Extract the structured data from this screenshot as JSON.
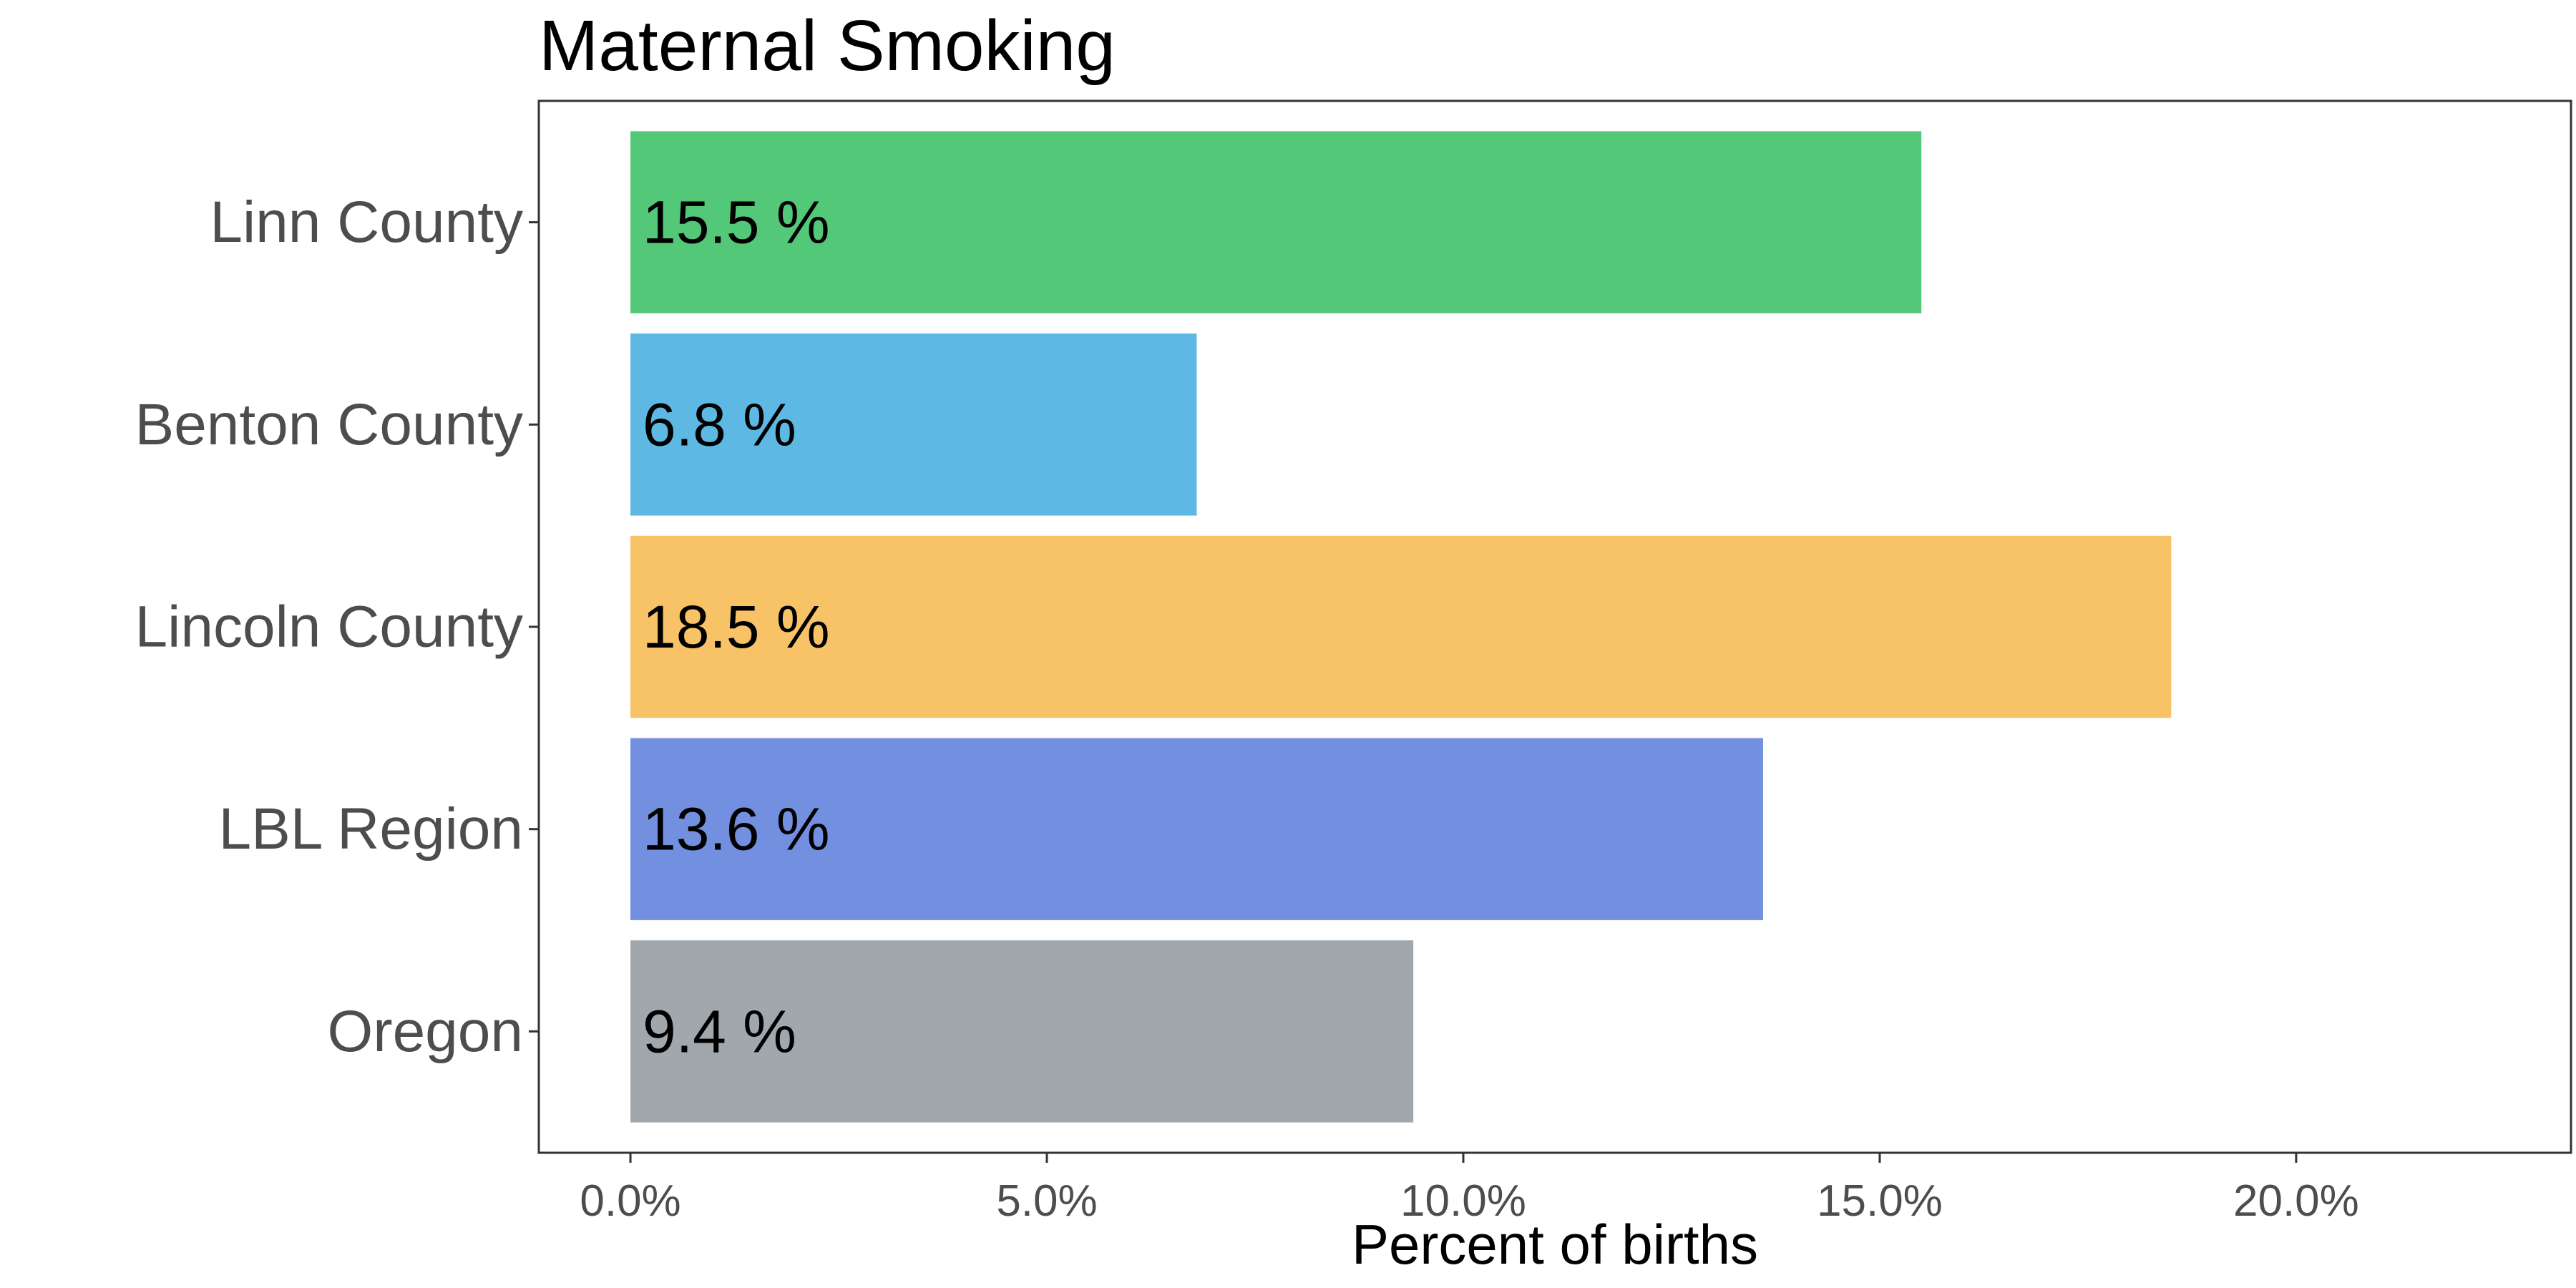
{
  "chart_data": {
    "type": "bar",
    "orientation": "horizontal",
    "title": "Maternal Smoking",
    "xlabel": "Percent of births",
    "ylabel": "",
    "categories": [
      "Linn County",
      "Benton County",
      "Lincoln County",
      "LBL Region",
      "Oregon"
    ],
    "values": [
      15.5,
      6.8,
      18.5,
      13.6,
      9.4
    ],
    "data_labels": [
      "15.5 %",
      "6.8 %",
      "18.5 %",
      "13.6 %",
      "9.4 %"
    ],
    "colors": [
      "#52c878",
      "#5db8e3",
      "#f8c366",
      "#728fe0",
      "#a0a8ae"
    ],
    "xlim": [
      -1.1,
      23.3
    ],
    "xticks": [
      0,
      5,
      10,
      15,
      20
    ],
    "xtick_labels": [
      "0.0%",
      "5.0%",
      "10.0%",
      "15.0%",
      "20.0%"
    ],
    "grid": false,
    "legend": "none"
  }
}
